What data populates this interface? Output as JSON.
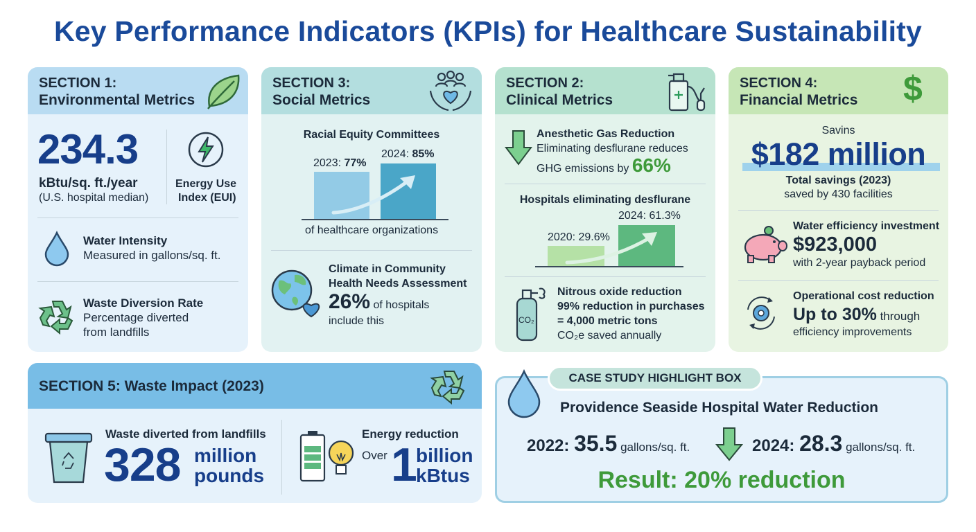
{
  "title": "Key Performance Indicators (KPIs) for Healthcare Sustainability",
  "colors": {
    "title_blue": "#1a4a9a",
    "big_blue": "#173e8a",
    "green_result": "#3e9a3a",
    "env_bg": "#e6f2fb",
    "social_bg": "#e2f2f2",
    "clinical_bg": "#e3f3ec",
    "financial_bg": "#e8f4e2"
  },
  "env": {
    "section": "SECTION 1:",
    "name": "Environmental Metrics",
    "eui_value": "234.3",
    "eui_unit": "kBtu/sq. ft./year",
    "eui_note": "(U.S. hospital median)",
    "eui_label_1": "Energy Use",
    "eui_label_2": "Index (EUI)",
    "water_title": "Water Intensity",
    "water_desc": "Measured in gallons/sq. ft.",
    "waste_title": "Waste Diversion Rate",
    "waste_desc_1": "Percentage diverted",
    "waste_desc_2": "from landfills"
  },
  "social": {
    "section": "SECTION 3:",
    "name": "Social Metrics",
    "rec_title": "Racial Equity Committees",
    "bar_2023_label": "2023: ",
    "bar_2023_value": "77%",
    "bar_2024_label": "2024: ",
    "bar_2024_value": "85%",
    "bar_caption": "of healthcare organizations",
    "climate_title_1": "Climate in Community",
    "climate_title_2": "Health Needs Assessment",
    "climate_value": "26%",
    "climate_desc_1": " of hospitals",
    "climate_desc_2": "include this"
  },
  "clinical": {
    "section": "SECTION 2:",
    "name": "Clinical Metrics",
    "gas_title": "Anesthetic Gas Reduction",
    "gas_desc_1": "Eliminating desflurane reduces",
    "gas_desc_2": "GHG emissions by ",
    "gas_value": "66%",
    "des_title": "Hospitals eliminating desflurane",
    "bar_2020": "2020: 29.6%",
    "bar_2024": "2024: 61.3%",
    "n2o_title": "Nitrous oxide reduction",
    "n2o_line_1": "99% reduction in purchases",
    "n2o_line_2": "= 4,000 metric tons",
    "n2o_line_3": "CO₂e saved annually",
    "tank_label": "CO₂"
  },
  "financial": {
    "section": "SECTION 4:",
    "name": "Financial Metrics",
    "savings_kicker": "Savins",
    "savings_value": "$182 million",
    "savings_title": "Total savings (2023)",
    "savings_desc": "saved by 430 facilities",
    "water_title": "Water efficiency investment",
    "water_value": "$923,000",
    "water_desc": "with 2-year payback period",
    "op_title": "Operational cost reduction",
    "op_value": "Up to 30%",
    "op_suffix": " through",
    "op_desc": "efficiency improvements"
  },
  "waste": {
    "name": "SECTION 5: Waste Impact (2023)",
    "diverted_title": "Waste diverted from landfills",
    "diverted_value": "328",
    "diverted_unit_1": "million",
    "diverted_unit_2": "pounds",
    "energy_title": "Energy reduction",
    "energy_over": "Over",
    "energy_value": "1",
    "energy_unit_1": "billion",
    "energy_unit_2": "kBtus"
  },
  "case": {
    "tab": "CASE STUDY HIGHLIGHT BOX",
    "title": "Providence Seaside Hospital Water Reduction",
    "y2022_label": "2022: ",
    "y2022_value": "35.5",
    "y2022_unit": " gallons/sq. ft.",
    "y2024_label": "2024: ",
    "y2024_value": "28.3",
    "y2024_unit": " gallons/sq. ft.",
    "result": "Result: 20% reduction"
  }
}
